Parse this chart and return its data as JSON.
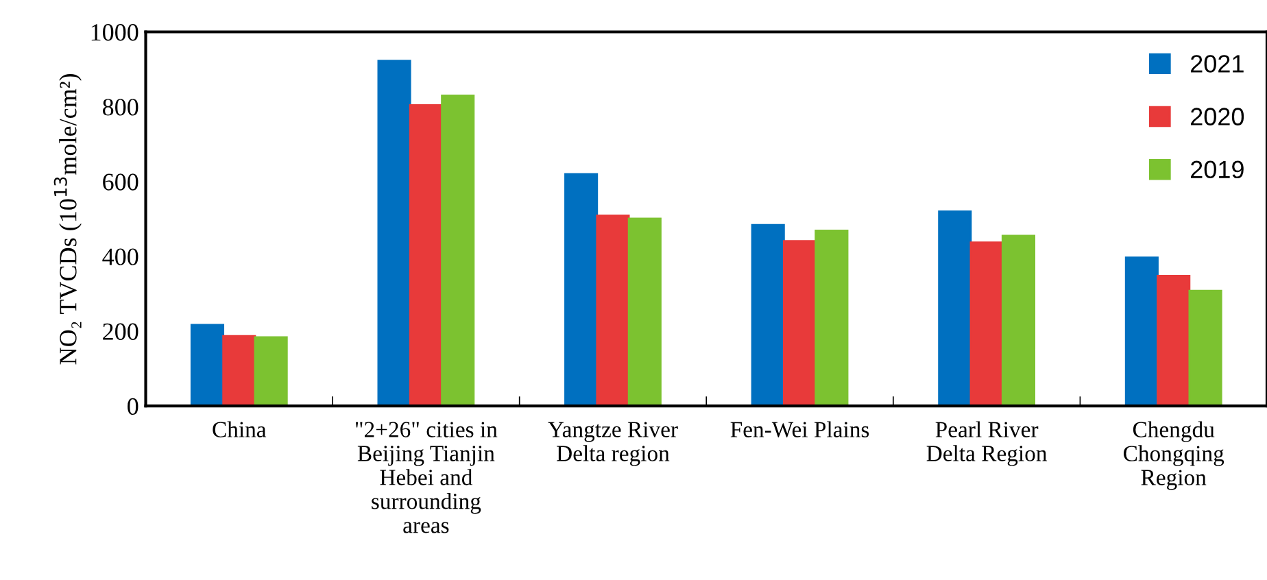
{
  "chart_data": {
    "type": "bar",
    "ylabel": "NO₂ TVCDs (10$^{13}$mole/cm²)",
    "categories": [
      "China",
      "\"2+26\" cities in\nBeijing Tianjin\nHebei and\nsurrounding\nareas",
      "Yangtze River\nDelta region",
      "Fen-Wei Plains",
      "Pearl River\nDelta Region",
      "Chengdu\nChongqing\nRegion"
    ],
    "series": [
      {
        "name": "2021",
        "color": "#0070c0",
        "values": [
          217,
          923,
          620,
          484,
          520,
          397
        ]
      },
      {
        "name": "2020",
        "color": "#e83a3a",
        "values": [
          187,
          804,
          509,
          441,
          437,
          348
        ]
      },
      {
        "name": "2019",
        "color": "#7cc230",
        "values": [
          184,
          830,
          501,
          469,
          455,
          308
        ]
      }
    ],
    "ylim": [
      0,
      1000
    ],
    "yticks": [
      0,
      200,
      400,
      600,
      800,
      1000
    ],
    "grid": false,
    "legend": "top right"
  }
}
